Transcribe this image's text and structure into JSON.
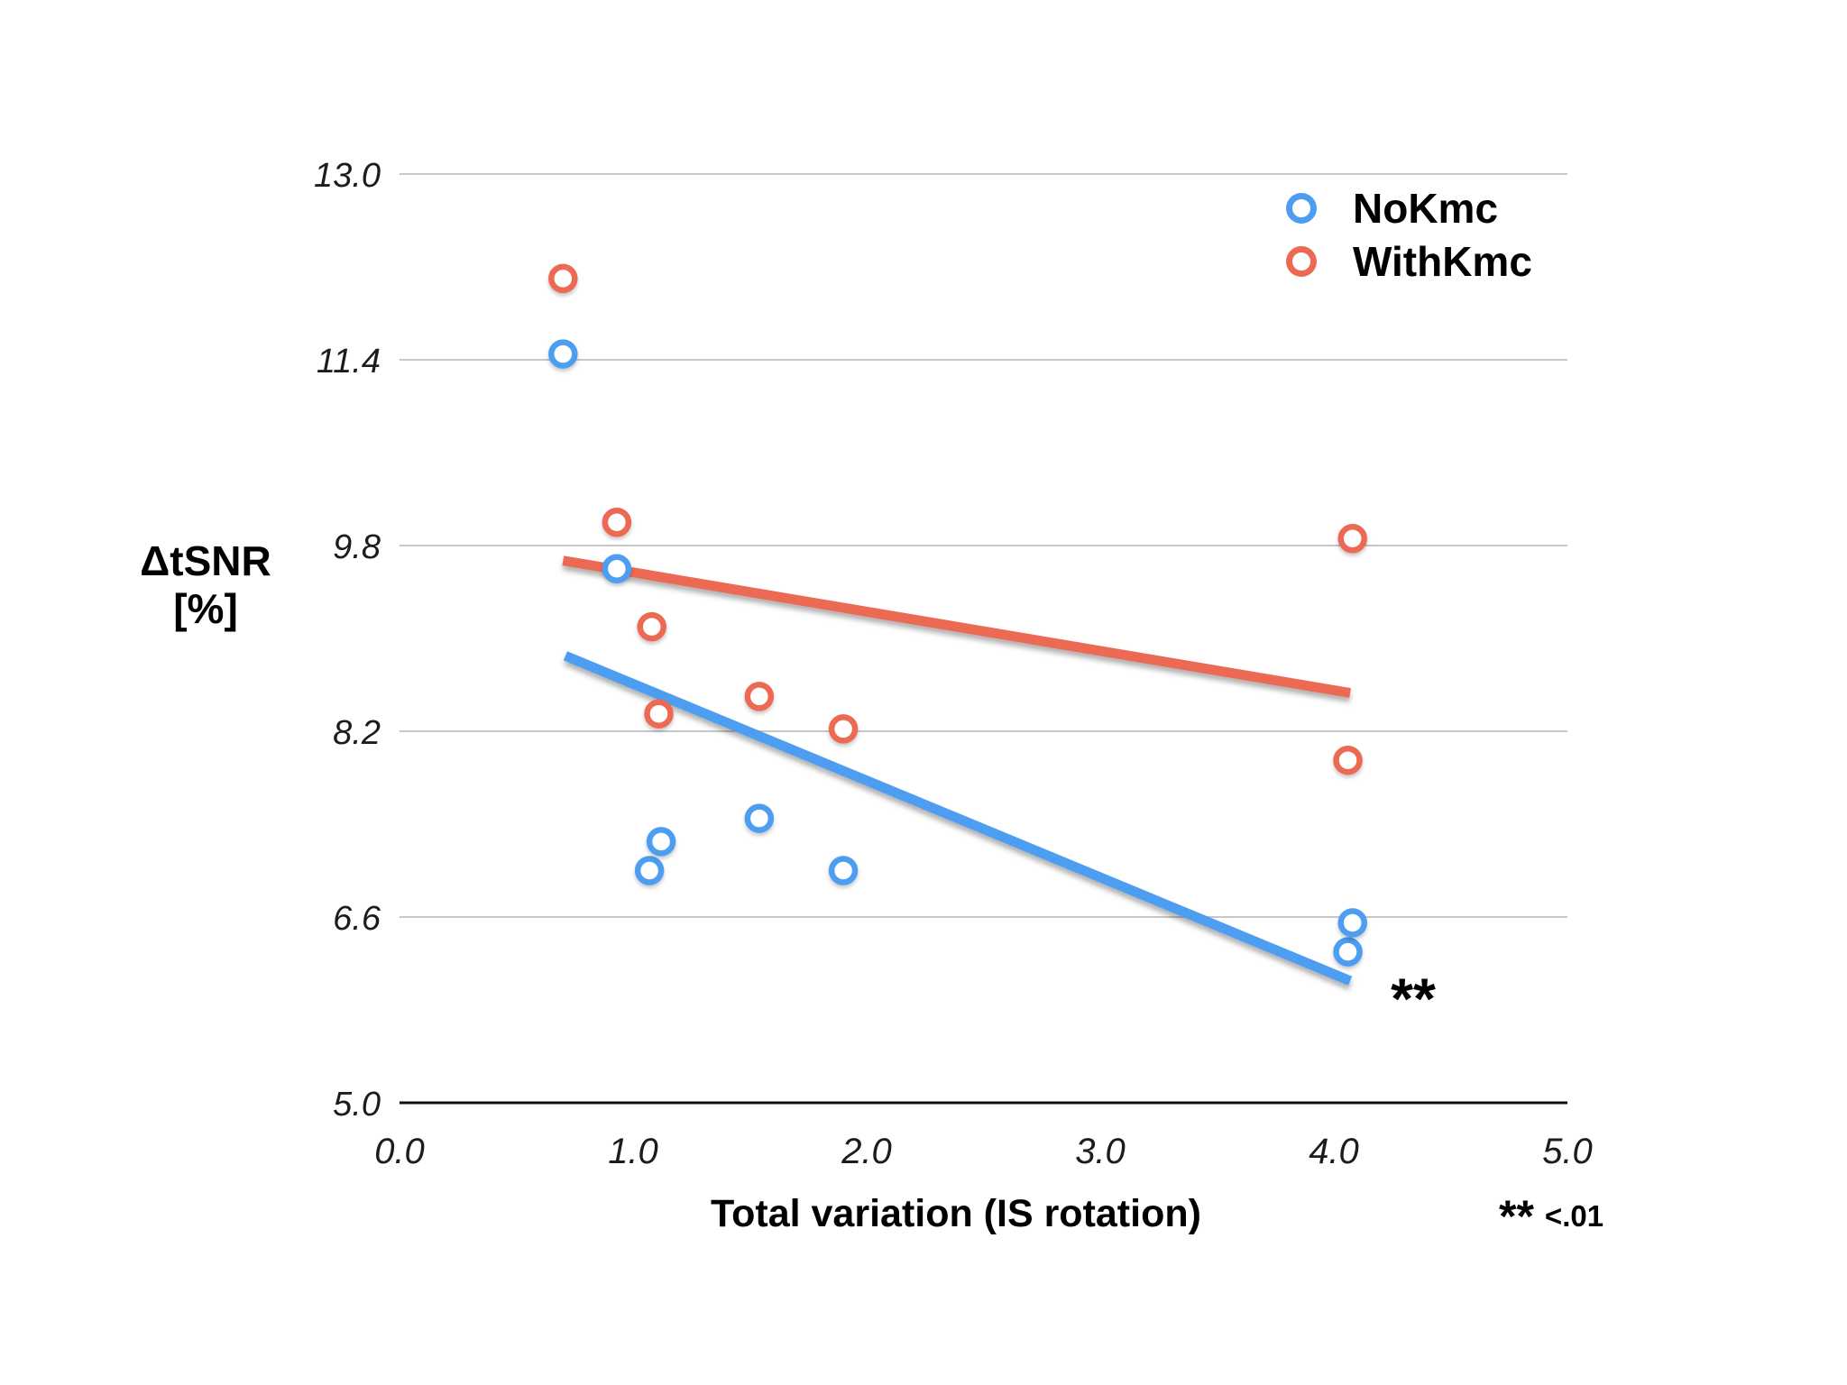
{
  "chart_data": {
    "type": "scatter",
    "title": "",
    "xlabel": "Total variation (IS rotation)",
    "ylabel": [
      "ΔtSNR",
      "[%]"
    ],
    "xlim": [
      0.0,
      5.0
    ],
    "ylim": [
      5.0,
      13.0
    ],
    "x_tick_labels": [
      "0.0",
      "1.0",
      "2.0",
      "3.0",
      "4.0",
      "5.0"
    ],
    "y_tick_labels": [
      "13.0",
      "11.4",
      "9.8",
      "8.2",
      "6.6",
      "5.0"
    ],
    "grid": "horizontal light-gray gridlines at each y tick, solid dark baseline at y=5.0, no vertical gridlines",
    "legend_position": "top-right inside plot",
    "series": [
      {
        "name": "NoKmc",
        "color": "#4D9DF0",
        "marker": "open-circle",
        "points": [
          [
            0.7,
            11.45
          ],
          [
            0.93,
            9.6
          ],
          [
            1.07,
            7.0
          ],
          [
            1.12,
            7.25
          ],
          [
            1.54,
            7.45
          ],
          [
            1.9,
            7.0
          ],
          [
            4.06,
            6.3
          ],
          [
            4.08,
            6.55
          ]
        ],
        "trendline": {
          "from": [
            0.71,
            8.85
          ],
          "to": [
            4.07,
            6.05
          ]
        }
      },
      {
        "name": "WithKmc",
        "color": "#EC6A52",
        "marker": "open-circle",
        "points": [
          [
            0.7,
            12.1
          ],
          [
            0.93,
            10.0
          ],
          [
            1.08,
            9.1
          ],
          [
            1.11,
            8.35
          ],
          [
            1.54,
            8.5
          ],
          [
            1.9,
            8.22
          ],
          [
            4.06,
            7.95
          ],
          [
            4.08,
            9.86
          ]
        ],
        "trendline": {
          "from": [
            0.7,
            9.67
          ],
          "to": [
            4.07,
            8.53
          ]
        }
      }
    ],
    "annotations": [
      {
        "text": "**",
        "x": 4.34,
        "y": 5.95
      }
    ]
  },
  "footnote": {
    "symbol": "**",
    "label": "<.01"
  },
  "colors": {
    "nokmc": "#4D9DF0",
    "withkmc": "#EC6A52",
    "gridline": "#C7C7C7",
    "axis_line": "#111111",
    "text": "#000000"
  }
}
